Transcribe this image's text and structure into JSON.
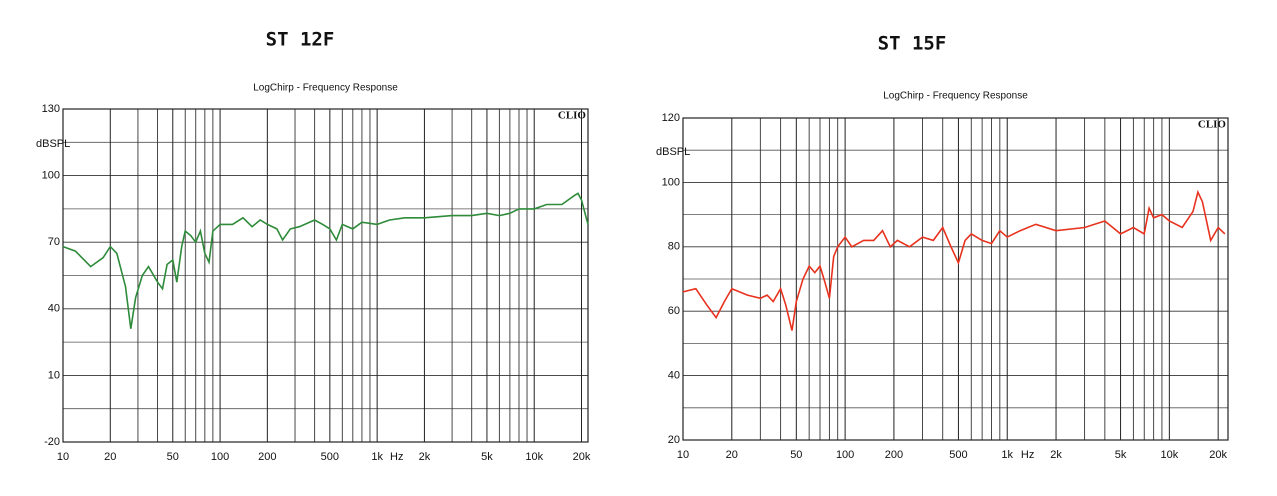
{
  "chart_data": [
    {
      "type": "line",
      "title": "ST 12F",
      "subtitle": "LogChirp - Frequency Response",
      "annotation": "CLIO",
      "y_label": "dBSPL",
      "x_label": "Hz",
      "log_x": true,
      "grid": true,
      "xlim": [
        10,
        22000
      ],
      "ylim": [
        -20,
        130
      ],
      "xticks": [
        10,
        20,
        50,
        100,
        200,
        500,
        {
          "value": 1000,
          "label": "1k"
        },
        {
          "value": 2000,
          "label": "2k"
        },
        {
          "value": 5000,
          "label": "5k"
        },
        {
          "value": 10000,
          "label": "10k"
        },
        {
          "value": 20000,
          "label": "20k"
        }
      ],
      "xminor": [
        30,
        40,
        60,
        70,
        80,
        90,
        300,
        400,
        600,
        700,
        800,
        900,
        3000,
        4000,
        6000,
        7000,
        8000,
        9000
      ],
      "yticks": [
        -20,
        10,
        40,
        70,
        100,
        130
      ],
      "yminor": [
        -5,
        25,
        55,
        85,
        115
      ],
      "x": [
        10,
        12,
        15,
        18,
        20,
        22,
        25,
        27,
        29,
        32,
        35,
        40,
        43,
        46,
        50,
        53,
        57,
        60,
        65,
        70,
        75,
        80,
        85,
        90,
        100,
        120,
        140,
        160,
        180,
        200,
        230,
        250,
        280,
        320,
        400,
        450,
        500,
        550,
        600,
        700,
        800,
        1000,
        1200,
        1500,
        2000,
        3000,
        4000,
        5000,
        6000,
        7000,
        8000,
        10000,
        12000,
        15000,
        18000,
        19000,
        20000,
        22000
      ],
      "series": [
        {
          "name": "ST 12F",
          "color": "#2e8b3a",
          "values": [
            68,
            66,
            59,
            63,
            68,
            65,
            50,
            31,
            45,
            55,
            59,
            52,
            49,
            60,
            62,
            52,
            68,
            75,
            73,
            70,
            75,
            65,
            61,
            75,
            78,
            78,
            81,
            77,
            80,
            78,
            76,
            71,
            76,
            77,
            80,
            78,
            76,
            71,
            78,
            76,
            79,
            78,
            80,
            81,
            81,
            82,
            82,
            83,
            82,
            83,
            85,
            85,
            87,
            87,
            91,
            92,
            89,
            78
          ]
        }
      ]
    },
    {
      "type": "line",
      "title": "ST 15F",
      "subtitle": "LogChirp - Frequency Response",
      "annotation": "CLIO",
      "y_label": "dBSPL",
      "x_label": "Hz",
      "log_x": true,
      "grid": true,
      "xlim": [
        10,
        23000
      ],
      "ylim": [
        20,
        120
      ],
      "xticks": [
        10,
        20,
        50,
        100,
        200,
        500,
        {
          "value": 1000,
          "label": "1k"
        },
        {
          "value": 2000,
          "label": "2k"
        },
        {
          "value": 5000,
          "label": "5k"
        },
        {
          "value": 10000,
          "label": "10k"
        },
        {
          "value": 20000,
          "label": "20k"
        }
      ],
      "xminor": [
        30,
        40,
        60,
        70,
        80,
        90,
        300,
        400,
        600,
        700,
        800,
        900,
        3000,
        4000,
        6000,
        7000,
        8000,
        9000
      ],
      "yticks": [
        20,
        40,
        60,
        80,
        100,
        120
      ],
      "yminor": [
        30,
        50,
        70,
        90,
        110
      ],
      "x": [
        10,
        12,
        14,
        16,
        18,
        20,
        25,
        30,
        33,
        36,
        40,
        43,
        47,
        50,
        55,
        60,
        65,
        70,
        75,
        80,
        85,
        90,
        100,
        110,
        130,
        150,
        170,
        190,
        210,
        250,
        300,
        350,
        400,
        450,
        500,
        550,
        600,
        700,
        800,
        900,
        1000,
        1200,
        1500,
        2000,
        3000,
        4000,
        5000,
        6000,
        7000,
        7500,
        8000,
        9000,
        10000,
        12000,
        14000,
        15000,
        16000,
        18000,
        20000,
        22000
      ],
      "series": [
        {
          "name": "ST 15F",
          "color": "#e8321e",
          "values": [
            66,
            67,
            62,
            58,
            63,
            67,
            65,
            64,
            65,
            63,
            67,
            62,
            54,
            63,
            70,
            74,
            72,
            74,
            69,
            64,
            77,
            80,
            83,
            80,
            82,
            82,
            85,
            80,
            82,
            80,
            83,
            82,
            86,
            80,
            75,
            82,
            84,
            82,
            81,
            85,
            83,
            85,
            87,
            85,
            86,
            88,
            84,
            86,
            84,
            92,
            89,
            90,
            88,
            86,
            91,
            97,
            94,
            82,
            86,
            84
          ]
        }
      ]
    }
  ]
}
